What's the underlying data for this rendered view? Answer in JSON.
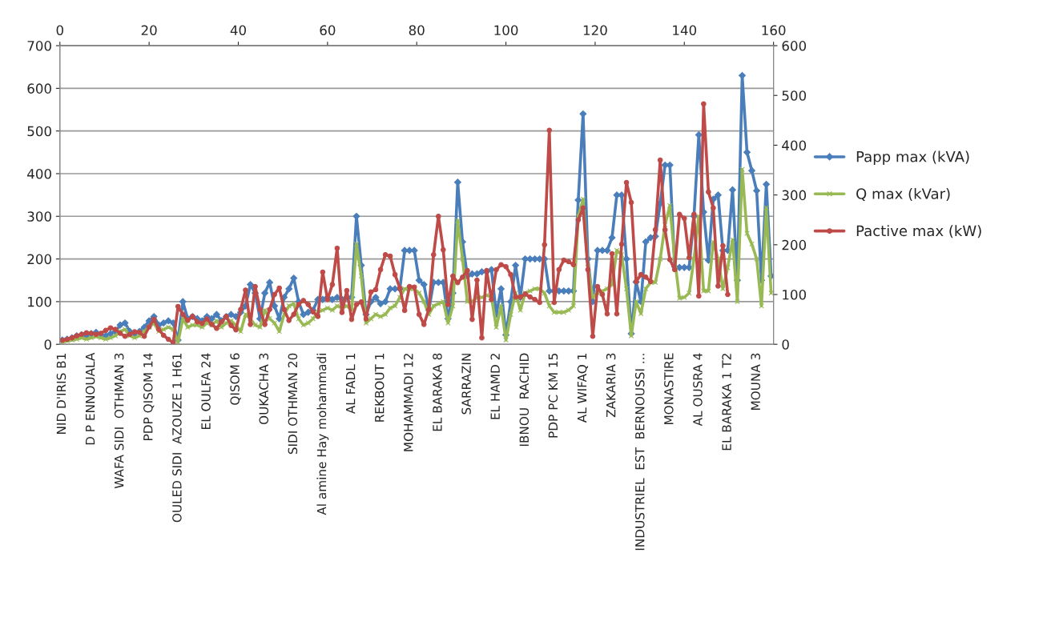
{
  "chart_data": {
    "type": "line",
    "categories": [
      "NID D'IRIS B1",
      null,
      null,
      null,
      null,
      null,
      "D P ENNOUALA",
      null,
      null,
      null,
      null,
      null,
      "WAFA SIDI  OTHMAN 3",
      null,
      null,
      null,
      null,
      null,
      "PDP QISOM 14",
      null,
      null,
      null,
      null,
      null,
      "OULED SIDI  AZOUZE 1 H61",
      null,
      null,
      null,
      null,
      null,
      "EL OULFA 24",
      null,
      null,
      null,
      null,
      null,
      "QISOM 6",
      null,
      null,
      null,
      null,
      null,
      "OUKACHA 3",
      null,
      null,
      null,
      null,
      null,
      "SIDI OTHMAN 20",
      null,
      null,
      null,
      null,
      null,
      "Al amine Hay mohammadi",
      null,
      null,
      null,
      null,
      null,
      "AL FADL 1",
      null,
      null,
      null,
      null,
      null,
      "REKBOUT 1",
      null,
      null,
      null,
      null,
      null,
      "MOHAMMADI 12",
      null,
      null,
      null,
      null,
      null,
      "EL BARAKA 8",
      null,
      null,
      null,
      null,
      null,
      "SARRAZIN",
      null,
      null,
      null,
      null,
      null,
      "EL HAMD 2",
      null,
      null,
      null,
      null,
      null,
      "IBNOU  RACHID",
      null,
      null,
      null,
      null,
      null,
      "PDP PC KM 15",
      null,
      null,
      null,
      null,
      null,
      "AL WIFAQ 1",
      null,
      null,
      null,
      null,
      null,
      "ZAKARIA 3",
      null,
      null,
      null,
      null,
      null,
      "INDUSTRIEL  EST  BERNOUSSI ...",
      null,
      null,
      null,
      null,
      null,
      "MONASTIRE",
      null,
      null,
      null,
      null,
      null,
      "AL OUSRA 4",
      null,
      null,
      null,
      null,
      null,
      "EL BARAKA 1 T2",
      null,
      null,
      null,
      null,
      null,
      "MOUNA 3",
      null,
      null,
      null
    ],
    "ylim": [
      0,
      700
    ],
    "yticks": [
      0,
      100,
      200,
      300,
      400,
      500,
      600,
      700
    ],
    "y2lim": [
      0,
      600
    ],
    "y2ticks": [
      0,
      100,
      200,
      300,
      400,
      500,
      600
    ],
    "x2lim": [
      0,
      160
    ],
    "x2ticks": [
      0,
      20,
      40,
      60,
      80,
      100,
      120,
      140,
      160
    ],
    "grid": "y",
    "legend": "right",
    "line_style": "solid",
    "series": [
      {
        "name": "Papp max (kVA)",
        "color": "#4a7ebb",
        "marker": "diamond",
        "values": [
          10,
          12,
          15,
          20,
          22,
          20,
          25,
          28,
          22,
          20,
          25,
          30,
          45,
          50,
          30,
          25,
          30,
          40,
          55,
          65,
          45,
          50,
          55,
          50,
          10,
          100,
          60,
          65,
          60,
          55,
          65,
          60,
          70,
          55,
          65,
          70,
          65,
          75,
          90,
          140,
          120,
          60,
          120,
          145,
          90,
          60,
          110,
          130,
          155,
          100,
          70,
          75,
          80,
          105,
          105,
          110,
          105,
          110,
          105,
          110,
          110,
          300,
          185,
          70,
          100,
          110,
          95,
          100,
          130,
          130,
          130,
          220,
          220,
          220,
          150,
          140,
          80,
          145,
          145,
          145,
          60,
          120,
          380,
          240,
          160,
          165,
          165,
          170,
          170,
          175,
          70,
          130,
          22,
          100,
          185,
          110,
          200,
          200,
          200,
          200,
          200,
          125,
          125,
          125,
          125,
          125,
          125,
          338,
          540,
          200,
          100,
          220,
          220,
          220,
          250,
          350,
          350,
          200,
          25,
          146,
          100,
          240,
          250,
          253,
          330,
          420,
          420,
          182,
          180,
          180,
          180,
          300,
          491,
          310,
          197,
          340,
          350,
          220,
          220,
          362,
          150,
          630,
          450,
          407,
          360,
          150,
          375,
          160
        ]
      },
      {
        "name": "Q max (kVar)",
        "color": "#98b954",
        "marker": "cross",
        "values": [
          5,
          8,
          10,
          12,
          15,
          12,
          15,
          18,
          15,
          12,
          15,
          20,
          30,
          35,
          20,
          15,
          20,
          30,
          40,
          50,
          30,
          35,
          40,
          35,
          5,
          60,
          40,
          45,
          45,
          40,
          50,
          45,
          55,
          40,
          50,
          55,
          45,
          30,
          70,
          60,
          45,
          40,
          80,
          60,
          50,
          30,
          70,
          90,
          95,
          60,
          45,
          50,
          60,
          75,
          80,
          85,
          80,
          90,
          85,
          90,
          80,
          235,
          160,
          50,
          60,
          70,
          65,
          70,
          85,
          90,
          110,
          130,
          130,
          130,
          120,
          100,
          70,
          90,
          95,
          100,
          50,
          90,
          290,
          200,
          100,
          100,
          110,
          110,
          115,
          110,
          40,
          90,
          10,
          70,
          120,
          80,
          120,
          125,
          130,
          130,
          120,
          90,
          75,
          75,
          75,
          80,
          90,
          300,
          340,
          180,
          110,
          120,
          125,
          130,
          140,
          220,
          210,
          130,
          20,
          100,
          72,
          130,
          145,
          145,
          200,
          280,
          325,
          200,
          108,
          110,
          120,
          200,
          300,
          125,
          125,
          240,
          200,
          130,
          180,
          245,
          100,
          410,
          260,
          235,
          200,
          90,
          320,
          120
        ]
      },
      {
        "name": "Pactive max (kW)",
        "color": "#be4b48",
        "marker": "circle",
        "axis": "y2",
        "values": [
          8,
          10,
          13,
          17,
          20,
          23,
          22,
          20,
          22,
          28,
          33,
          30,
          22,
          16,
          20,
          25,
          24,
          16,
          35,
          50,
          30,
          18,
          10,
          3,
          76,
          60,
          48,
          56,
          45,
          42,
          51,
          40,
          32,
          45,
          56,
          38,
          29,
          70,
          109,
          40,
          116,
          70,
          40,
          70,
          100,
          113,
          70,
          48,
          60,
          80,
          88,
          80,
          65,
          56,
          145,
          90,
          120,
          193,
          64,
          108,
          50,
          80,
          85,
          51,
          105,
          110,
          150,
          180,
          177,
          140,
          113,
          68,
          116,
          115,
          60,
          40,
          70,
          180,
          257,
          190,
          80,
          137,
          124,
          135,
          148,
          50,
          129,
          13,
          148,
          90,
          150,
          160,
          156,
          140,
          95,
          95,
          101,
          95,
          90,
          84,
          200,
          430,
          84,
          150,
          169,
          166,
          160,
          250,
          274,
          150,
          16,
          116,
          100,
          61,
          182,
          61,
          201,
          325,
          285,
          126,
          140,
          135,
          126,
          230,
          370,
          230,
          170,
          150,
          261,
          253,
          174,
          261,
          97,
          483,
          306,
          274,
          117,
          198,
          100,
          null,
          null,
          null,
          null,
          null,
          null,
          null,
          null,
          null
        ]
      }
    ]
  }
}
